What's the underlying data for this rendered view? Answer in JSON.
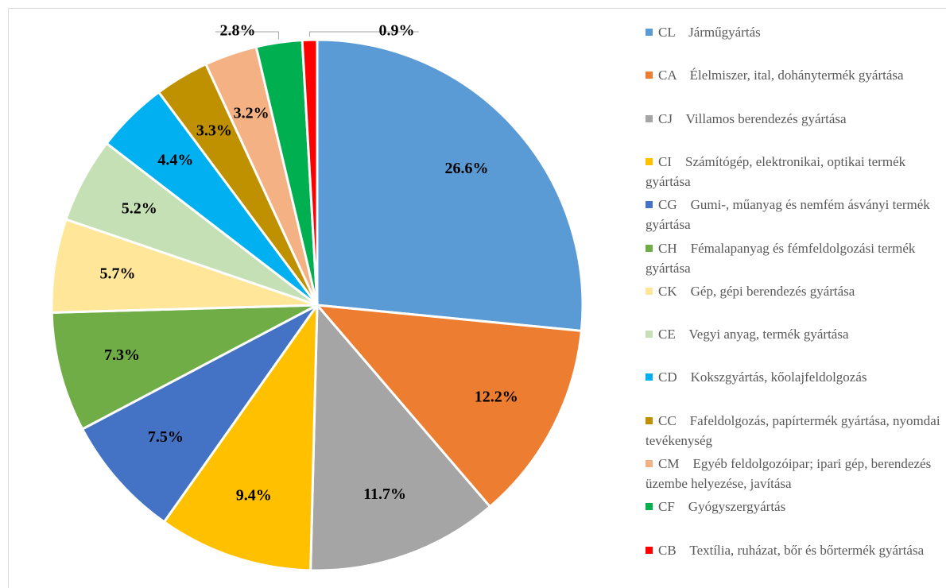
{
  "chart_data": {
    "type": "pie",
    "categories": [
      "CL    Járműgyártás",
      "CA    Élelmiszer, ital, dohánytermék gyártása",
      "CJ    Villamos berendezés gyártása",
      "CI    Számítógép, elektronikai, optikai termék gyártása",
      "CG    Gumi-, műanyag és nemfém ásványi termék gyártása",
      "CH    Fémalapanyag és fémfeldolgozási termék gyártása",
      "CK    Gép, gépi berendezés gyártása",
      "CE    Vegyi anyag, termék gyártása",
      "CD    Kokszgyártás, kőolajfeldolgozás",
      "CC    Fafeldolgozás, papírtermék gyártása, nyomdai tevékenység",
      "CM    Egyéb feldolgozóipar; ipari gép, berendezés üzembe helyezése, javítása",
      "CF    Gyógyszergyártás",
      "CB    Textília, ruházat, bőr és bőrtermék gyártása"
    ],
    "values": [
      26.6,
      12.2,
      11.7,
      9.4,
      7.5,
      7.3,
      5.7,
      5.2,
      4.4,
      3.3,
      3.2,
      2.8,
      0.9
    ],
    "value_labels": [
      "26.6%",
      "12.2%",
      "11.7%",
      "9.4%",
      "7.5%",
      "7.3%",
      "5.7%",
      "5.2%",
      "4.4%",
      "3.3%",
      "3.2%",
      "2.8%",
      "0.9%"
    ],
    "colors": [
      "#5b9bd5",
      "#ed7d31",
      "#a5a5a5",
      "#ffc000",
      "#4472c4",
      "#70ad47",
      "#ffe699",
      "#c5e0b4",
      "#00b0f0",
      "#bf9000",
      "#f4b183",
      "#00b050",
      "#ff0000"
    ],
    "legend": "right"
  }
}
